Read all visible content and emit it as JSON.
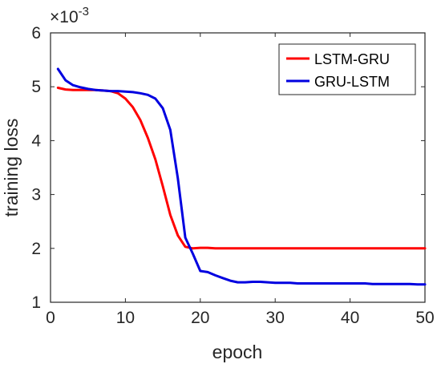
{
  "chart_data": {
    "type": "line",
    "xlabel": "epoch",
    "ylabel": "training loss",
    "y_exponent_base": "×10",
    "y_exponent_power": "-3",
    "xlim": [
      0,
      50
    ],
    "ylim": [
      1,
      6
    ],
    "xticks": [
      0,
      10,
      20,
      30,
      40,
      50
    ],
    "yticks": [
      1,
      2,
      3,
      4,
      5,
      6
    ],
    "grid": false,
    "legend_position": "top-right",
    "colors": {
      "LSTM-GRU": "#ff0000",
      "GRU-LSTM": "#0000e0",
      "axis": "#262626"
    },
    "series": [
      {
        "name": "LSTM-GRU",
        "color": "#ff0000",
        "x": [
          1,
          2,
          3,
          4,
          5,
          6,
          7,
          8,
          9,
          10,
          11,
          12,
          13,
          14,
          15,
          16,
          17,
          18,
          19,
          20,
          21,
          22,
          23,
          24,
          25,
          26,
          27,
          28,
          29,
          30,
          31,
          32,
          33,
          34,
          35,
          36,
          37,
          38,
          39,
          40,
          41,
          42,
          43,
          44,
          45,
          46,
          47,
          48,
          49,
          50
        ],
        "y": [
          4.98,
          4.95,
          4.94,
          4.94,
          4.94,
          4.94,
          4.93,
          4.92,
          4.88,
          4.78,
          4.62,
          4.38,
          4.05,
          3.65,
          3.15,
          2.62,
          2.24,
          2.03,
          2.0,
          2.01,
          2.01,
          2.0,
          2.0,
          2.0,
          2.0,
          2.0,
          2.0,
          2.0,
          2.0,
          2.0,
          2.0,
          2.0,
          2.0,
          2.0,
          2.0,
          2.0,
          2.0,
          2.0,
          2.0,
          2.0,
          2.0,
          2.0,
          2.0,
          2.0,
          2.0,
          2.0,
          2.0,
          2.0,
          2.0,
          2.0
        ]
      },
      {
        "name": "GRU-LSTM",
        "color": "#0000e0",
        "x": [
          1,
          2,
          3,
          4,
          5,
          6,
          7,
          8,
          9,
          10,
          11,
          12,
          13,
          14,
          15,
          16,
          17,
          18,
          19,
          20,
          21,
          22,
          23,
          24,
          25,
          26,
          27,
          28,
          29,
          30,
          31,
          32,
          33,
          34,
          35,
          36,
          37,
          38,
          39,
          40,
          41,
          42,
          43,
          44,
          45,
          46,
          47,
          48,
          49,
          50
        ],
        "y": [
          5.33,
          5.12,
          5.03,
          4.99,
          4.96,
          4.94,
          4.93,
          4.92,
          4.92,
          4.91,
          4.9,
          4.88,
          4.85,
          4.78,
          4.6,
          4.2,
          3.3,
          2.2,
          1.9,
          1.58,
          1.56,
          1.5,
          1.45,
          1.4,
          1.37,
          1.37,
          1.38,
          1.38,
          1.37,
          1.36,
          1.36,
          1.36,
          1.35,
          1.35,
          1.35,
          1.35,
          1.35,
          1.35,
          1.35,
          1.35,
          1.35,
          1.35,
          1.34,
          1.34,
          1.34,
          1.34,
          1.34,
          1.34,
          1.33,
          1.33
        ]
      }
    ]
  }
}
